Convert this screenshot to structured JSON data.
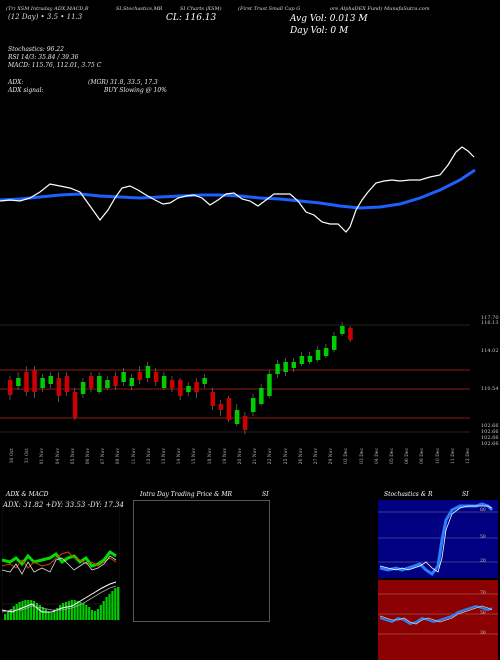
{
  "header": {
    "line1": [
      "(Tr) XSM Intraday ADX,MACD,B",
      "SI,Stochastics,MR",
      "SI Charts (XSM)",
      "(First Trust Small Cap G",
      "ore AlphaDEX Fund) MunafaSutra.com"
    ],
    "price": "CL: 116.13",
    "bar_sizes": "(12 Day) • 3.5 • 11.3",
    "avg_vol": "Avg Vol: 0.013 M",
    "day_vol": "Day Vol: 0   M"
  },
  "indicators": {
    "stoch": "Stochastics: 96.22",
    "rsi": "RSI 14/3: 35.84 / 39.36",
    "macd": "MACD: 115.76,  112.01,  3.75 C",
    "adx": "ADX:",
    "adx_values": "(MGR) 31.8,  33.5,  17.3",
    "adx_signal": "ADX  signal:",
    "signal": "BUY Slowing @ 10%"
  },
  "price_levels": [
    "117.70",
    "116.13",
    "114.02",
    "110.54",
    "102.66",
    "102.66",
    "102.66",
    "102.66"
  ],
  "dates": [
    "30 Oct",
    "31 Oct",
    "01 Nov",
    "04 Nov",
    "05 Nov",
    "06 Nov",
    "07 Nov",
    "08 Nov",
    "11 Nov",
    "12 Nov",
    "13 Nov",
    "14 Nov",
    "15 Nov",
    "18 Nov",
    "19 Nov",
    "20 Nov",
    "21 Nov",
    "22 Nov",
    "25 Nov",
    "26 Nov",
    "27 Nov",
    "29 Nov",
    "02 Dec",
    "03 Dec",
    "04 Dec",
    "05 Dec",
    "06 Dec",
    "09 Dec",
    "10 Dec",
    "11 Dec",
    "12 Dec"
  ],
  "panels": {
    "left_title": "ADX  & MACD",
    "left_info": "ADX: 31.82  +DY: 33.53 -DY: 17.34",
    "mid_title": "Intra  Day Trading Price  & MR",
    "mid_title2": "SI",
    "right_title": "Stochastics & R",
    "right_title2": "SI",
    "stoch_levels": [
      "80",
      "50",
      "20"
    ],
    "rsi_levels": [
      "70",
      "50",
      "30"
    ]
  },
  "colors": {
    "up": "#00cc00",
    "down": "#cc0000",
    "ema": "#1e5fff",
    "rsi_bg": "#8b0000",
    "stoch_bg": "#000080"
  }
}
